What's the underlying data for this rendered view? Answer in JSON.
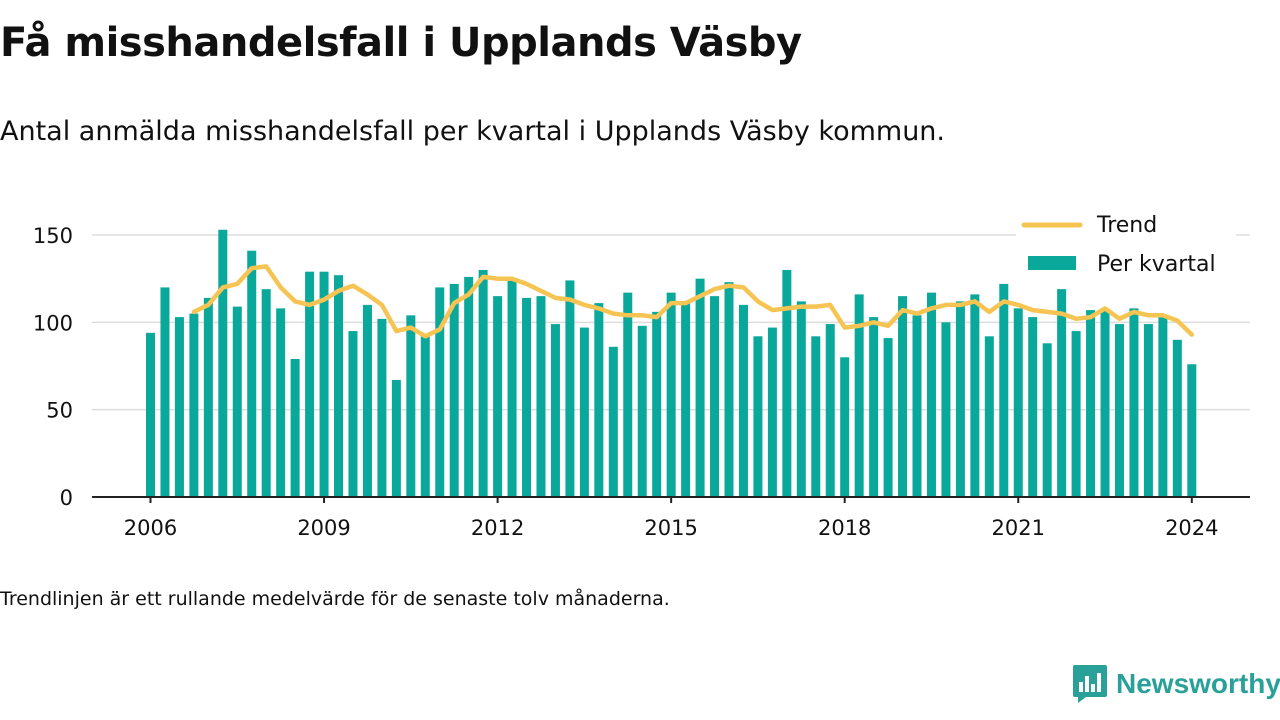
{
  "header": {
    "title": "Få misshandelsfall i Upplands Väsby",
    "subtitle": "Antal anmälda misshandelsfall per kvartal i Upplands Väsby kommun."
  },
  "footer": {
    "note": "Trendlinjen är ett rullande medelvärde för de senaste tolv månaderna."
  },
  "brand": {
    "name": "Newsworthy",
    "color": "#2aa198",
    "icon": "newsworthy-logo-icon"
  },
  "colors": {
    "bar": "#0aa89b",
    "trend": "#f6c453",
    "grid": "#dddddd",
    "axis": "#222222",
    "text": "#111111"
  },
  "chart_data": {
    "type": "bar",
    "title": "Få misshandelsfall i Upplands Väsby",
    "subtitle": "Antal anmälda misshandelsfall per kvartal i Upplands Väsby kommun.",
    "xlabel": "",
    "ylabel": "",
    "ylim": [
      0,
      150
    ],
    "yticks": [
      0,
      50,
      100,
      150
    ],
    "xticks": [
      "2006",
      "2009",
      "2012",
      "2015",
      "2018",
      "2021",
      "2024"
    ],
    "grid": true,
    "legend_position": "top-right",
    "start": "2006 Q1",
    "end": "2024 Q1",
    "series": [
      {
        "name": "Per kvartal",
        "kind": "bar",
        "color": "#0aa89b",
        "values": [
          94,
          120,
          103,
          105,
          114,
          153,
          109,
          141,
          119,
          108,
          79,
          129,
          129,
          127,
          95,
          110,
          102,
          67,
          104,
          92,
          120,
          122,
          126,
          130,
          115,
          124,
          114,
          115,
          99,
          124,
          97,
          111,
          86,
          117,
          98,
          106,
          117,
          112,
          125,
          115,
          123,
          110,
          92,
          97,
          130,
          112,
          92,
          99,
          80,
          116,
          103,
          91,
          115,
          104,
          117,
          100,
          112,
          116,
          92,
          122,
          108,
          103,
          88,
          119,
          95,
          107,
          107,
          99,
          108,
          99,
          103,
          90,
          76
        ]
      },
      {
        "name": "Trend",
        "kind": "line",
        "color": "#f6c453",
        "values": [
          null,
          null,
          null,
          106,
          110,
          120,
          122,
          131,
          132,
          120,
          112,
          110,
          113,
          118,
          121,
          116,
          110,
          95,
          97,
          92,
          96,
          111,
          116,
          126,
          125,
          125,
          122,
          118,
          114,
          113,
          110,
          108,
          105,
          104,
          104,
          103,
          111,
          111,
          115,
          119,
          121,
          120,
          112,
          107,
          108,
          109,
          109,
          110,
          97,
          98,
          100,
          98,
          107,
          105,
          108,
          110,
          110,
          112,
          106,
          112,
          110,
          107,
          106,
          105,
          102,
          103,
          108,
          102,
          106,
          104,
          104,
          101,
          93
        ]
      }
    ]
  }
}
